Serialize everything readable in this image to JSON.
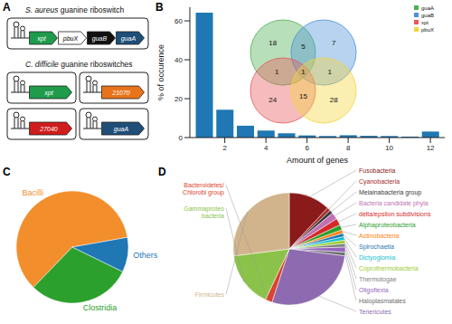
{
  "panel_labels": [
    "A",
    "B",
    "C",
    "D"
  ],
  "diagram": {
    "operons": [
      {
        "organism": "S. aureus",
        "title": "guanine riboswitch",
        "loci": [
          [
            {
              "label": "xpt",
              "color": "#1e9b4b"
            },
            {
              "label": "pbuX",
              "color": "#ffffff"
            },
            {
              "label": "guaB",
              "color": "#111111"
            },
            {
              "label": "guaA",
              "color": "#1f4e79"
            }
          ]
        ]
      },
      {
        "organism": "C. difficile",
        "title": "guanine riboswitches",
        "loci": [
          [
            {
              "label": "xpt",
              "color": "#1e9b4b"
            }
          ],
          [
            {
              "label": "21070",
              "color": "#e8731a"
            }
          ],
          [
            {
              "label": "27040",
              "color": "#d01c1c"
            }
          ],
          [
            {
              "label": "guaA",
              "color": "#1f4e79"
            }
          ]
        ]
      }
    ]
  },
  "chart_data": [
    {
      "type": "bar",
      "x": [
        1,
        2,
        3,
        4,
        5,
        6,
        7,
        8,
        9,
        10,
        11,
        12
      ],
      "values": [
        64.2,
        14.3,
        6.1,
        3.6,
        2.2,
        1.1,
        0.8,
        1.2,
        0.9,
        0.8,
        0.5,
        3.1
      ],
      "color": "#1f77b4",
      "xlabel": "Amount of genes",
      "ylabel": "% of occurence",
      "xlim": [
        0.3,
        12.7
      ],
      "xticks": [
        2,
        4,
        6,
        8,
        10,
        12
      ],
      "ylim": [
        0,
        67
      ],
      "yticks": [
        0,
        20,
        40,
        60
      ]
    },
    {
      "type": "pie",
      "categories": [
        "Bacilli",
        "Clostridia",
        "Others"
      ],
      "values": [
        60,
        30,
        10
      ],
      "colors": [
        "#f28e2b",
        "#2ca02c",
        "#1f77b4"
      ]
    },
    {
      "type": "pie",
      "categories": [
        "Fusobacteria",
        "Cyanobacteria",
        "Melainabacteria group",
        "Bacteria candidate phyla",
        "delta/epsilon subdivisions",
        "Alphaproteobacteria",
        "Actinobacteria",
        "Spirochaetia",
        "Dictyoglomia",
        "Coprothermobacteria",
        "Thermotogae",
        "Oligoflexia",
        "Haloplasmatales",
        "Tenericutes",
        "Bacteroidetes/\nChlorobi group",
        "Gammaproteo\nbacteria",
        "Firmicutes"
      ],
      "values": [
        12,
        1,
        1,
        2,
        2,
        1.5,
        1,
        1,
        1,
        1,
        1,
        1.5,
        1,
        28,
        2,
        16,
        27
      ],
      "colors": [
        "#8b1a1a",
        "#a52a2a",
        "#3b3b3b",
        "#c071b5",
        "#d62728",
        "#2ca02c",
        "#ff7f0e",
        "#1f77b4",
        "#17becf",
        "#9acd32",
        "#7f7f7f",
        "#9467bd",
        "#6b6b6b",
        "#8e6bb0",
        "#d9432f",
        "#8bc34a",
        "#d2b48c"
      ]
    }
  ],
  "venn": {
    "sets": [
      {
        "name": "guaA",
        "color": "#4caf50"
      },
      {
        "name": "guaB",
        "color": "#4a90d9"
      },
      {
        "name": "xpt",
        "color": "#e8575a"
      },
      {
        "name": "pbuX",
        "color": "#f2d43d"
      }
    ],
    "regions": [
      {
        "sets": [
          "guaA"
        ],
        "value": 18
      },
      {
        "sets": [
          "guaA",
          "guaB"
        ],
        "value": 5
      },
      {
        "sets": [
          "guaB"
        ],
        "value": 7
      },
      {
        "sets": [
          "guaA",
          "xpt"
        ],
        "value": 1
      },
      {
        "sets": [
          "guaA",
          "guaB",
          "xpt",
          "pbuX"
        ],
        "value": 1
      },
      {
        "sets": [
          "guaB",
          "pbuX"
        ],
        "value": 1
      },
      {
        "sets": [
          "xpt"
        ],
        "value": 24
      },
      {
        "sets": [
          "xpt",
          "pbuX"
        ],
        "value": 15
      },
      {
        "sets": [
          "pbuX"
        ],
        "value": 28
      }
    ]
  }
}
